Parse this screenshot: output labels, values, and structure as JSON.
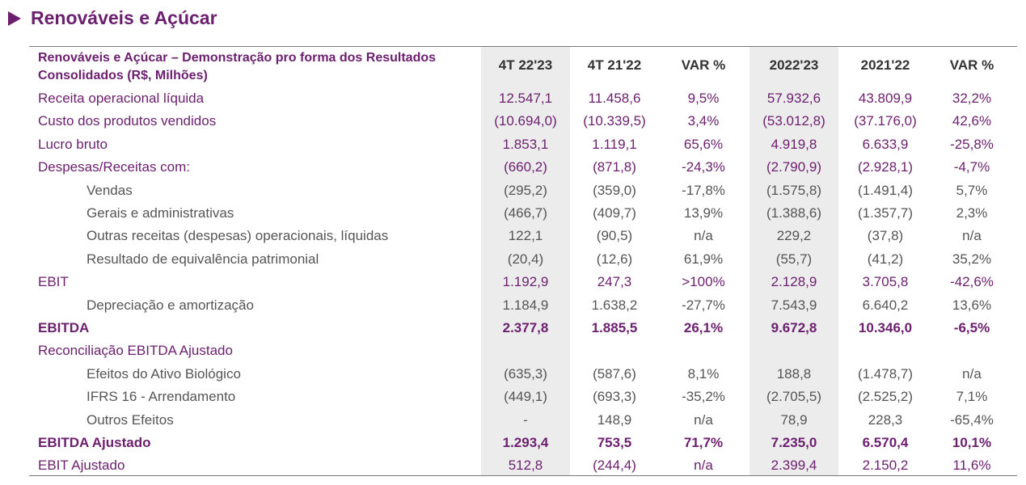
{
  "header": {
    "title": "Renováveis e Açúcar"
  },
  "table": {
    "columns": [
      "Renováveis e Açúcar – Demonstração pro forma dos Resultados Consolidados (R$, Milhões)",
      "4T 22'23",
      "4T 21'22",
      "VAR %",
      "2022'23",
      "2021'22",
      "VAR %"
    ],
    "rows": [
      [
        "Receita operacional líquida",
        "12.547,1",
        "11.458,6",
        "9,5%",
        "57.932,6",
        "43.809,9",
        "32,2%"
      ],
      [
        "Custo dos produtos vendidos",
        "(10.694,0)",
        "(10.339,5)",
        "3,4%",
        "(53.012,8)",
        "(37.176,0)",
        "42,6%"
      ],
      [
        "Lucro bruto",
        "1.853,1",
        "1.119,1",
        "65,6%",
        "4.919,8",
        "6.633,9",
        "-25,8%"
      ],
      [
        "Despesas/Receitas com:",
        "(660,2)",
        "(871,8)",
        "-24,3%",
        "(2.790,9)",
        "(2.928,1)",
        "-4,7%"
      ],
      [
        "Vendas",
        "(295,2)",
        "(359,0)",
        "-17,8%",
        "(1.575,8)",
        "(1.491,4)",
        "5,7%"
      ],
      [
        "Gerais e administrativas",
        "(466,7)",
        "(409,7)",
        "13,9%",
        "(1.388,6)",
        "(1.357,7)",
        "2,3%"
      ],
      [
        "Outras receitas (despesas) operacionais, líquidas",
        "122,1",
        "(90,5)",
        "n/a",
        "229,2",
        "(37,8)",
        "n/a"
      ],
      [
        "Resultado de equivalência patrimonial",
        "(20,4)",
        "(12,6)",
        "61,9%",
        "(55,7)",
        "(41,2)",
        "35,2%"
      ],
      [
        "EBIT",
        "1.192,9",
        "247,3",
        ">100%",
        "2.128,9",
        "3.705,8",
        "-42,6%"
      ],
      [
        "Depreciação e amortização",
        "1.184,9",
        "1.638,2",
        "-27,7%",
        "7.543,9",
        "6.640,2",
        "13,6%"
      ],
      [
        "EBITDA",
        "2.377,8",
        "1.885,5",
        "26,1%",
        "9.672,8",
        "10.346,0",
        "-6,5%"
      ],
      [
        "Reconciliação EBITDA Ajustado"
      ],
      [
        "Efeitos do Ativo Biológico",
        "(635,3)",
        "(587,6)",
        "8,1%",
        "188,8",
        "(1.478,7)",
        "n/a"
      ],
      [
        "IFRS 16 - Arrendamento",
        "(449,1)",
        "(693,3)",
        "-35,2%",
        "(2.705,5)",
        "(2.525,2)",
        "7,1%"
      ],
      [
        "Outros Efeitos",
        "-",
        "148,9",
        "n/a",
        "78,9",
        "228,3",
        "-65,4%"
      ],
      [
        "EBITDA Ajustado",
        "1.293,4",
        "753,5",
        "71,7%",
        "7.235,0",
        "6.570,4",
        "10,1%"
      ],
      [
        "EBIT Ajustado",
        "512,8",
        "(244,4)",
        "n/a",
        "2.399,4",
        "2.150,2",
        "11,6%"
      ]
    ]
  }
}
